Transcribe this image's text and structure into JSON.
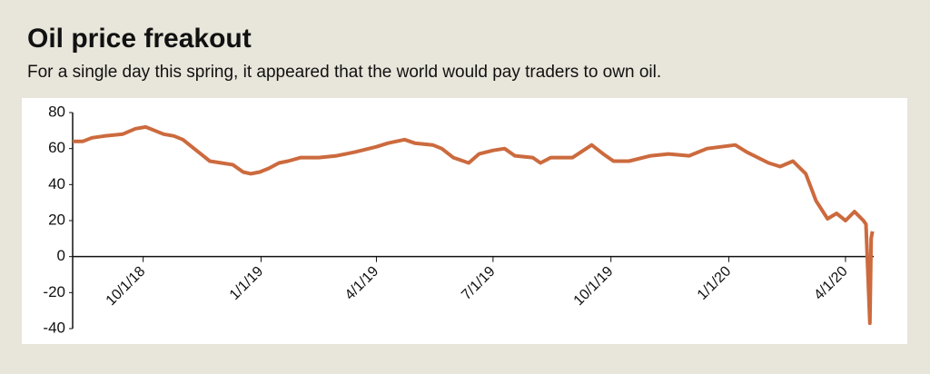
{
  "chart_data": {
    "type": "line",
    "title": "Oil price freakout",
    "subtitle": "For a single day this spring, it appeared that the world would pay traders to own oil.",
    "x": [
      "8/7/18",
      "8/15/18",
      "8/22/18",
      "9/1/18",
      "9/15/18",
      "9/25/18",
      "10/3/18",
      "10/10/18",
      "10/17/18",
      "10/25/18",
      "11/1/18",
      "11/8/18",
      "11/15/18",
      "11/22/18",
      "12/1/18",
      "12/10/18",
      "12/18/18",
      "12/24/18",
      "12/31/18",
      "1/7/19",
      "1/15/19",
      "1/22/19",
      "2/1/19",
      "2/15/19",
      "3/1/19",
      "3/15/19",
      "4/1/19",
      "4/10/19",
      "4/23/19",
      "5/1/19",
      "5/15/19",
      "5/22/19",
      "5/31/19",
      "6/12/19",
      "6/20/19",
      "7/1/19",
      "7/10/19",
      "7/18/19",
      "8/1/19",
      "8/7/19",
      "8/15/19",
      "9/1/19",
      "9/16/19",
      "9/25/19",
      "10/3/19",
      "10/15/19",
      "11/1/19",
      "11/15/19",
      "12/1/19",
      "12/15/19",
      "1/6/20",
      "1/15/20",
      "2/1/20",
      "2/10/20",
      "2/20/20",
      "3/1/20",
      "3/9/20",
      "3/18/20",
      "3/25/20",
      "4/1/20",
      "4/8/20",
      "4/15/20",
      "4/17/20",
      "4/20/20",
      "4/21/20",
      "4/22/20"
    ],
    "series": [
      {
        "name": "Oil price",
        "color": "#cc6a3e",
        "values": [
          64,
          64,
          66,
          67,
          68,
          71,
          72,
          70,
          68,
          67,
          65,
          61,
          57,
          53,
          52,
          51,
          47,
          46,
          47,
          49,
          52,
          53,
          55,
          55,
          56,
          58,
          61,
          63,
          65,
          63,
          62,
          60,
          55,
          52,
          57,
          59,
          60,
          56,
          55,
          52,
          55,
          55,
          62,
          57,
          53,
          53,
          56,
          57,
          56,
          60,
          62,
          58,
          52,
          50,
          53,
          46,
          31,
          21,
          24,
          20,
          25,
          20,
          18,
          -37,
          10,
          14
        ]
      }
    ],
    "xlim": [
      "8/7/18",
      "4/23/20"
    ],
    "xticks": [
      "10/1/18",
      "1/1/19",
      "4/1/19",
      "7/1/19",
      "10/1/19",
      "1/1/20",
      "4/1/20"
    ],
    "ylim": [
      -40,
      80
    ],
    "yticks": [
      -40,
      -20,
      0,
      20,
      40,
      60,
      80
    ]
  }
}
